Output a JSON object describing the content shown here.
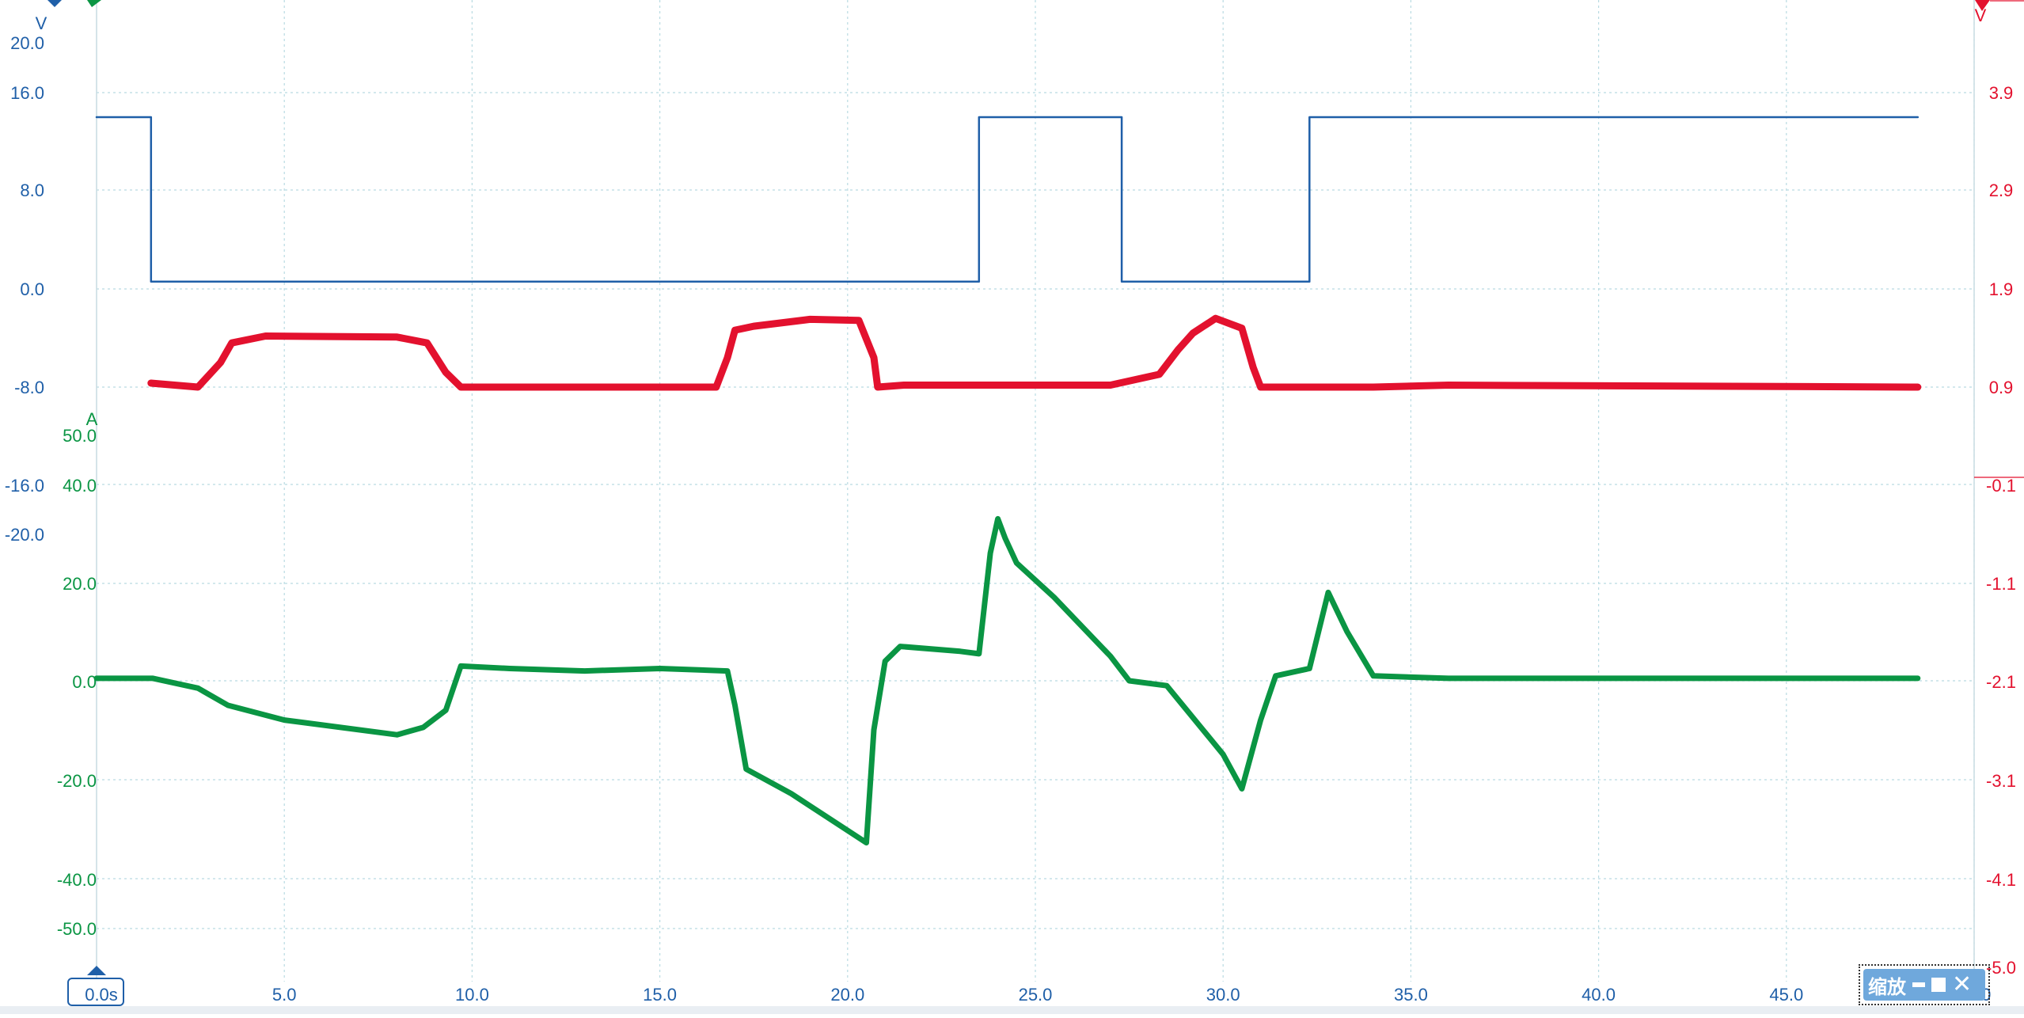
{
  "chart_data": {
    "type": "line",
    "x_axis": {
      "range": [
        0,
        50
      ],
      "ticks": [
        "0.0s",
        "5.0",
        "10.0",
        "15.0",
        "20.0",
        "25.0",
        "30.0",
        "35.0",
        "40.0",
        "45.0",
        "50.0"
      ],
      "tick_values": [
        0,
        5,
        10,
        15,
        20,
        25,
        30,
        35,
        40,
        45,
        50
      ],
      "cursor_label": "0.0s"
    },
    "left_axis_blue": {
      "unit": "V",
      "range": [
        -20,
        20
      ],
      "ticks": [
        "20.0",
        "16.0",
        "8.0",
        "0.0",
        "-8.0",
        "-16.0",
        "-20.0"
      ],
      "tick_values": [
        20,
        16,
        8,
        0,
        -8,
        -16,
        -20
      ]
    },
    "left_axis_green": {
      "unit": "A",
      "range": [
        -50,
        50
      ],
      "ticks": [
        "50.0",
        "40.0",
        "20.0",
        "0.0",
        "-20.0",
        "-40.0",
        "-50.0"
      ],
      "tick_values": [
        50,
        40,
        20,
        0,
        -20,
        -40,
        -50
      ]
    },
    "right_axis_red": {
      "unit": "V",
      "range": [
        -5.0,
        5.0
      ],
      "ticks": [
        "3.9",
        "2.9",
        "1.9",
        "0.9",
        "-0.1",
        "-1.1",
        "-2.1",
        "-3.1",
        "-4.1",
        "-5.0"
      ],
      "tick_values": [
        3.9,
        2.9,
        1.9,
        0.9,
        -0.1,
        -1.1,
        -2.1,
        -3.1,
        -4.1,
        -5.0
      ]
    },
    "grid": true,
    "series": [
      {
        "axis": "blue",
        "color": "#1f5fa8",
        "x": [
          0.0,
          1.45,
          1.45,
          23.5,
          23.5,
          27.3,
          27.3,
          32.3,
          32.3,
          48.5
        ],
        "y": [
          14.0,
          14.0,
          0.6,
          0.6,
          14.0,
          14.0,
          0.6,
          0.6,
          14.0,
          14.0
        ]
      },
      {
        "axis": "red",
        "color": "#e3112e",
        "x": [
          1.45,
          2.7,
          3.3,
          3.6,
          4.5,
          8.0,
          8.8,
          9.3,
          9.7,
          16.5,
          16.8,
          17.0,
          17.5,
          19.0,
          20.3,
          20.7,
          20.8,
          21.5,
          27.0,
          28.3,
          28.8,
          29.2,
          29.8,
          30.5,
          30.8,
          31.0,
          31.5,
          34.0,
          36.0,
          48.5
        ],
        "y": [
          0.94,
          0.9,
          1.15,
          1.35,
          1.42,
          1.41,
          1.35,
          1.05,
          0.9,
          0.9,
          1.2,
          1.48,
          1.52,
          1.59,
          1.58,
          1.2,
          0.9,
          0.92,
          0.92,
          1.03,
          1.28,
          1.45,
          1.6,
          1.5,
          1.1,
          0.9,
          0.9,
          0.9,
          0.92,
          0.9
        ]
      },
      {
        "axis": "green",
        "color": "#0a9543",
        "x": [
          0.0,
          1.5,
          2.7,
          3.5,
          5.0,
          8.0,
          8.7,
          9.3,
          9.7,
          11.0,
          13.0,
          15.0,
          16.8,
          17.0,
          17.3,
          18.5,
          20.5,
          20.7,
          21.0,
          21.4,
          23.0,
          23.5,
          23.8,
          24.0,
          24.2,
          24.5,
          25.5,
          27.0,
          27.5,
          28.5,
          30.0,
          30.5,
          31.0,
          31.4,
          32.0,
          32.3,
          32.8,
          33.3,
          34.0,
          36.0,
          48.5
        ],
        "y": [
          0.5,
          0.5,
          -1.5,
          -5.0,
          -8.0,
          -11.0,
          -9.5,
          -6.0,
          3.0,
          2.5,
          2.0,
          2.5,
          2.0,
          -5.0,
          -18.0,
          -23.0,
          -33.0,
          -10.0,
          4.0,
          7.0,
          6.0,
          5.5,
          26.0,
          33.0,
          29.0,
          24.0,
          17.0,
          5.0,
          0.0,
          -1.0,
          -15.0,
          -22.0,
          -8.0,
          1.0,
          2.0,
          2.5,
          18.0,
          10.0,
          1.0,
          0.5,
          0.5
        ]
      }
    ]
  },
  "ui": {
    "zoom_label": "缩放"
  },
  "colors": {
    "blue": "#1f5fa8",
    "red": "#e3112e",
    "green": "#0a9543",
    "grid": "#b9dbe2"
  }
}
